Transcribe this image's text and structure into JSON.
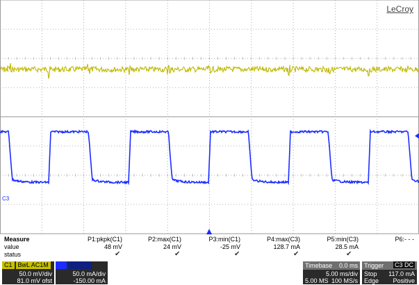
{
  "brand": "LeCroy",
  "markers": {
    "c1": "C1",
    "c3": "C3"
  },
  "colors": {
    "c1": "#bfb600",
    "c3": "#1a2cff",
    "grid": "#9a9a9a"
  },
  "measure": {
    "title": "Measure",
    "row_value": "value",
    "row_status": "status",
    "params": [
      {
        "name": "P1:pkpk(C1)",
        "value": "48 mV",
        "status": "✔"
      },
      {
        "name": "P2:max(C1)",
        "value": "24 mV",
        "status": "✔"
      },
      {
        "name": "P3:min(C1)",
        "value": "-25 mV",
        "status": "✔"
      },
      {
        "name": "P4:max(C3)",
        "value": "128.7 mA",
        "status": "✔"
      },
      {
        "name": "P5:min(C3)",
        "value": "28.5 mA",
        "status": "✔"
      },
      {
        "name": "P6:- - -",
        "value": "",
        "status": ""
      }
    ]
  },
  "channels": {
    "c1": {
      "label": "C1",
      "flags": "BwL AC1M",
      "vdiv": "50.0 mV/div",
      "offset": "81.0 mV ofst"
    },
    "c3": {
      "vdiv": "50.0 mA/div",
      "offset": "-150.00 mA"
    }
  },
  "timebase": {
    "label": "Timebase",
    "delay": "0.0 ms",
    "tdiv": "5.00 ms/div",
    "samples": "5.00 MS",
    "rate": "100 MS/s"
  },
  "trigger": {
    "label": "Trigger",
    "source": "C3 DC",
    "mode": "Stop",
    "level": "117.0 mA",
    "type": "Edge",
    "slope": "Positive"
  }
}
